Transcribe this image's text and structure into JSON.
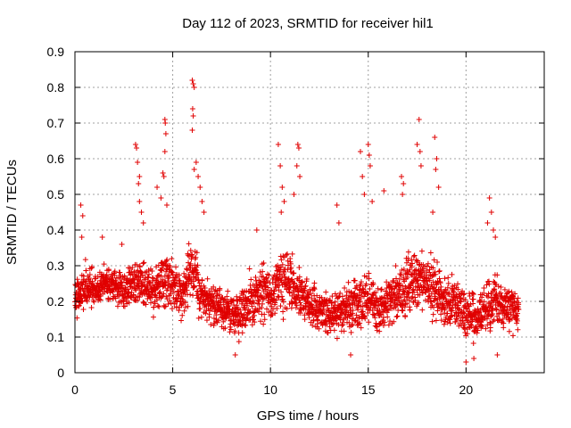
{
  "chart_data": {
    "type": "scatter",
    "title": "Day 112 of 2023, SRMTID for receiver hil1",
    "xlabel": "GPS time / hours",
    "ylabel": "SRMTID / TECUs",
    "xlim": [
      0,
      24
    ],
    "ylim": [
      0,
      0.9
    ],
    "xticks": [
      0,
      5,
      10,
      15,
      20
    ],
    "xtick_labels": [
      "0",
      "5",
      "10",
      "15",
      "20"
    ],
    "yticks": [
      0,
      0.1,
      0.2,
      0.3,
      0.4,
      0.5,
      0.6,
      0.7,
      0.8,
      0.9
    ],
    "ytick_labels": [
      "0",
      "0.1",
      "0.2",
      "0.3",
      "0.4",
      "0.5",
      "0.6",
      "0.7",
      "0.8",
      "0.9"
    ],
    "grid": true,
    "marker": "+",
    "color": "#e00000",
    "series": [
      {
        "name": "hil1",
        "envelope": {
          "x": [
            0.0,
            0.5,
            1.0,
            1.5,
            2.0,
            2.5,
            3.0,
            3.5,
            4.0,
            4.5,
            5.0,
            5.5,
            6.0,
            6.5,
            7.0,
            7.5,
            8.0,
            8.5,
            9.0,
            9.5,
            10.0,
            10.5,
            11.0,
            11.5,
            12.0,
            12.5,
            13.0,
            13.5,
            14.0,
            14.5,
            15.0,
            15.5,
            16.0,
            16.5,
            17.0,
            17.5,
            18.0,
            18.5,
            19.0,
            19.5,
            20.0,
            20.5,
            21.0,
            21.5,
            22.0,
            22.5,
            22.7
          ],
          "low": [
            0.13,
            0.15,
            0.17,
            0.18,
            0.18,
            0.15,
            0.15,
            0.14,
            0.12,
            0.14,
            0.12,
            0.1,
            0.13,
            0.12,
            0.11,
            0.1,
            0.06,
            0.05,
            0.08,
            0.09,
            0.1,
            0.11,
            0.12,
            0.12,
            0.1,
            0.09,
            0.08,
            0.07,
            0.06,
            0.07,
            0.08,
            0.07,
            0.08,
            0.1,
            0.11,
            0.12,
            0.12,
            0.1,
            0.08,
            0.07,
            0.05,
            0.04,
            0.06,
            0.08,
            0.09,
            0.1,
            0.1
          ],
          "high": [
            0.3,
            0.33,
            0.3,
            0.32,
            0.32,
            0.3,
            0.35,
            0.35,
            0.33,
            0.38,
            0.36,
            0.34,
            0.45,
            0.3,
            0.28,
            0.26,
            0.27,
            0.28,
            0.33,
            0.35,
            0.33,
            0.4,
            0.38,
            0.32,
            0.28,
            0.26,
            0.26,
            0.28,
            0.3,
            0.32,
            0.33,
            0.3,
            0.3,
            0.34,
            0.38,
            0.38,
            0.38,
            0.36,
            0.3,
            0.3,
            0.26,
            0.27,
            0.3,
            0.34,
            0.28,
            0.26,
            0.24
          ]
        },
        "spikes": [
          {
            "x": 0.3,
            "y": 0.47
          },
          {
            "x": 0.4,
            "y": 0.44
          },
          {
            "x": 0.35,
            "y": 0.38
          },
          {
            "x": 1.4,
            "y": 0.38
          },
          {
            "x": 2.4,
            "y": 0.36
          },
          {
            "x": 3.1,
            "y": 0.64
          },
          {
            "x": 3.15,
            "y": 0.63
          },
          {
            "x": 3.2,
            "y": 0.59
          },
          {
            "x": 3.3,
            "y": 0.55
          },
          {
            "x": 3.25,
            "y": 0.53
          },
          {
            "x": 3.3,
            "y": 0.48
          },
          {
            "x": 3.4,
            "y": 0.45
          },
          {
            "x": 3.5,
            "y": 0.42
          },
          {
            "x": 4.2,
            "y": 0.52
          },
          {
            "x": 4.4,
            "y": 0.49
          },
          {
            "x": 4.5,
            "y": 0.56
          },
          {
            "x": 4.6,
            "y": 0.71
          },
          {
            "x": 4.62,
            "y": 0.7
          },
          {
            "x": 4.65,
            "y": 0.67
          },
          {
            "x": 4.6,
            "y": 0.62
          },
          {
            "x": 4.55,
            "y": 0.55
          },
          {
            "x": 4.7,
            "y": 0.47
          },
          {
            "x": 6.0,
            "y": 0.82
          },
          {
            "x": 6.05,
            "y": 0.81
          },
          {
            "x": 6.1,
            "y": 0.8
          },
          {
            "x": 6.02,
            "y": 0.74
          },
          {
            "x": 6.05,
            "y": 0.72
          },
          {
            "x": 6.0,
            "y": 0.68
          },
          {
            "x": 6.2,
            "y": 0.59
          },
          {
            "x": 6.1,
            "y": 0.57
          },
          {
            "x": 6.3,
            "y": 0.55
          },
          {
            "x": 6.4,
            "y": 0.52
          },
          {
            "x": 6.5,
            "y": 0.48
          },
          {
            "x": 6.6,
            "y": 0.45
          },
          {
            "x": 9.3,
            "y": 0.4
          },
          {
            "x": 10.4,
            "y": 0.64
          },
          {
            "x": 10.5,
            "y": 0.58
          },
          {
            "x": 10.6,
            "y": 0.52
          },
          {
            "x": 10.7,
            "y": 0.48
          },
          {
            "x": 10.55,
            "y": 0.45
          },
          {
            "x": 11.2,
            "y": 0.5
          },
          {
            "x": 11.4,
            "y": 0.64
          },
          {
            "x": 11.45,
            "y": 0.63
          },
          {
            "x": 11.35,
            "y": 0.58
          },
          {
            "x": 11.5,
            "y": 0.55
          },
          {
            "x": 13.4,
            "y": 0.47
          },
          {
            "x": 13.5,
            "y": 0.42
          },
          {
            "x": 14.6,
            "y": 0.62
          },
          {
            "x": 14.7,
            "y": 0.55
          },
          {
            "x": 14.8,
            "y": 0.5
          },
          {
            "x": 15.0,
            "y": 0.64
          },
          {
            "x": 15.05,
            "y": 0.61
          },
          {
            "x": 15.1,
            "y": 0.58
          },
          {
            "x": 15.2,
            "y": 0.48
          },
          {
            "x": 15.8,
            "y": 0.51
          },
          {
            "x": 16.7,
            "y": 0.55
          },
          {
            "x": 16.8,
            "y": 0.53
          },
          {
            "x": 16.75,
            "y": 0.5
          },
          {
            "x": 17.6,
            "y": 0.71
          },
          {
            "x": 17.5,
            "y": 0.64
          },
          {
            "x": 17.65,
            "y": 0.62
          },
          {
            "x": 17.7,
            "y": 0.58
          },
          {
            "x": 18.4,
            "y": 0.66
          },
          {
            "x": 18.5,
            "y": 0.6
          },
          {
            "x": 18.45,
            "y": 0.57
          },
          {
            "x": 18.6,
            "y": 0.52
          },
          {
            "x": 18.3,
            "y": 0.45
          },
          {
            "x": 21.2,
            "y": 0.49
          },
          {
            "x": 21.3,
            "y": 0.45
          },
          {
            "x": 21.1,
            "y": 0.42
          },
          {
            "x": 21.4,
            "y": 0.4
          },
          {
            "x": 21.5,
            "y": 0.38
          },
          {
            "x": 20.0,
            "y": 0.03
          },
          {
            "x": 20.4,
            "y": 0.04
          },
          {
            "x": 21.6,
            "y": 0.05
          },
          {
            "x": 8.2,
            "y": 0.05
          },
          {
            "x": 14.1,
            "y": 0.05
          }
        ]
      }
    ]
  }
}
